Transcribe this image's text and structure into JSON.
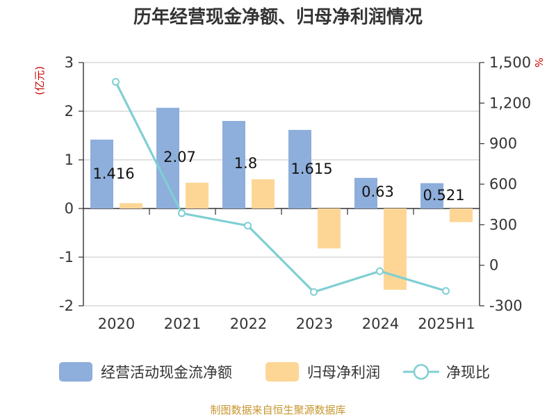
{
  "chart_data": {
    "type": "bar",
    "title": "历年经营现金净额、归母净利润情况",
    "categories": [
      "2020",
      "2021",
      "2022",
      "2023",
      "2024",
      "2025H1"
    ],
    "left_axis": {
      "unit": "(亿元)",
      "ylim": [
        -2,
        3
      ],
      "ticks": [
        "3",
        "2",
        "1",
        "0",
        "-1",
        "-2"
      ]
    },
    "right_axis": {
      "unit": "%",
      "ylim": [
        -300,
        1500
      ],
      "ticks": [
        "1,500",
        "1,200",
        "900",
        "600",
        "300",
        "0",
        "-300"
      ]
    },
    "series": [
      {
        "name": "经营活动现金流净额",
        "type": "bar",
        "axis": "left",
        "color": "#8eaedb",
        "values": [
          1.416,
          2.07,
          1.8,
          1.615,
          0.63,
          0.521
        ],
        "labels": [
          "1.416",
          "2.07",
          "1.8",
          "1.615",
          "0.63",
          "0.521"
        ]
      },
      {
        "name": "归母净利润",
        "type": "bar",
        "axis": "left",
        "color": "#fdd696",
        "values": [
          0.11,
          0.53,
          0.6,
          -0.82,
          -1.67,
          -0.28
        ]
      },
      {
        "name": "净现比",
        "type": "line",
        "axis": "right",
        "color": "#7fcfd3",
        "values": [
          1357,
          385,
          293,
          -198,
          -44,
          -190
        ]
      }
    ],
    "grid": true,
    "legend": "bottom"
  },
  "footer": {
    "source": "制图数据来自恒生聚源数据库"
  }
}
